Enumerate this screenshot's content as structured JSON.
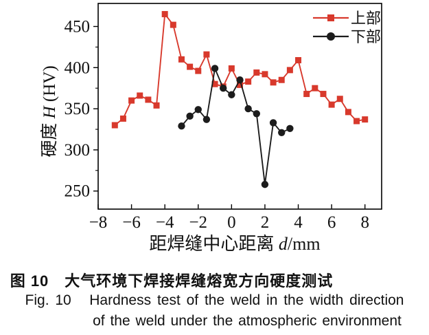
{
  "figure": {
    "caption_cn": "图 10　大气环境下焊接焊缝熔宽方向硬度测试",
    "caption_en_line1": "Fig. 10   Hardness test of the weld in the width direction",
    "caption_en_line2": "of the weld under the atmospheric environment"
  },
  "chart_data": {
    "type": "line",
    "title": "",
    "xlabel": "距焊缝中心距离 d/mm",
    "xlabel_parts": {
      "prefix": "距焊缝中心距离 ",
      "italic": "d",
      "suffix": "/mm"
    },
    "ylabel": "硬度 H (HV)",
    "ylabel_parts": {
      "prefix": "硬度 ",
      "italic": "H",
      "suffix": " (HV)"
    },
    "xlim": [
      -8,
      9
    ],
    "ylim": [
      228,
      478
    ],
    "xticks": [
      -8,
      -6,
      -4,
      -2,
      0,
      2,
      4,
      6,
      8
    ],
    "yticks": [
      250,
      300,
      350,
      400,
      450
    ],
    "yticks_minor": [
      275,
      325,
      375,
      425
    ],
    "grid": false,
    "legend_position": "top-right-inside",
    "axis_color": "#000000",
    "text_color": "#111111",
    "series": [
      {
        "name": "上部",
        "marker": "square",
        "color": "#d8392c",
        "x": [
          -7,
          -6.5,
          -6,
          -5.5,
          -5,
          -4.5,
          -4,
          -3.5,
          -3,
          -2.5,
          -2,
          -1.5,
          -1,
          -0.5,
          0,
          0.5,
          1,
          1.5,
          2,
          2.5,
          3,
          3.5,
          4,
          4.5,
          5,
          5.5,
          6,
          6.5,
          7,
          7.5,
          8
        ],
        "y": [
          330,
          338,
          360,
          366,
          361,
          354,
          465,
          452,
          410,
          401,
          396,
          416,
          380,
          377,
          399,
          379,
          383,
          394,
          392,
          382,
          385,
          397,
          409,
          368,
          375,
          368,
          355,
          362,
          346,
          335,
          337
        ]
      },
      {
        "name": "下部",
        "marker": "circle",
        "color": "#1c1c1c",
        "x": [
          -3,
          -2.5,
          -2,
          -1.5,
          -1,
          -0.5,
          0,
          0.5,
          1,
          1.5,
          2,
          2.5,
          3,
          3.5
        ],
        "y": [
          329,
          341,
          349,
          337,
          399,
          375,
          367,
          385,
          350,
          344,
          258,
          333,
          321,
          326
        ]
      }
    ]
  }
}
